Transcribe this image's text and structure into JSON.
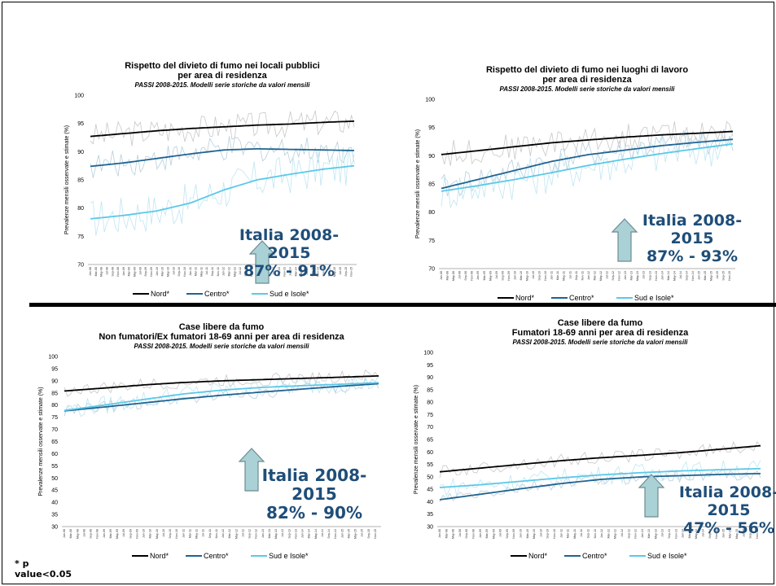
{
  "footnote": {
    "line1": "* p",
    "line2": "value<0.05"
  },
  "chart_data": [
    {
      "type": "line",
      "title": "Rispetto del divieto di fumo nei locali pubblici",
      "title2": "per area di residenza",
      "subtitle": "PASSI 2008-2015. Modelli serie storiche da valori mensili",
      "ylabel": "Prevalenze mensili osservate e stimate (%)",
      "ylim": [
        70,
        100
      ],
      "yticks": [
        70,
        75,
        80,
        85,
        90,
        95,
        100
      ],
      "x": [
        "2008-01",
        "2009-01",
        "2010-01",
        "2011-01",
        "2012-01",
        "2013-01",
        "2014-01",
        "2015-01",
        "2015-12"
      ],
      "series": [
        {
          "name": "Nord*",
          "color": "#000000",
          "values": [
            92.7,
            93.2,
            93.7,
            94.1,
            94.4,
            94.7,
            94.9,
            95.2,
            95.4
          ]
        },
        {
          "name": "Centro*",
          "color": "#1f6391",
          "values": [
            87.4,
            88.0,
            88.8,
            89.6,
            90.3,
            90.5,
            90.4,
            90.3,
            90.2
          ]
        },
        {
          "name": "Sud e Isole*",
          "color": "#5bc8e8",
          "values": [
            78.1,
            78.7,
            79.5,
            80.9,
            83.2,
            85.0,
            86.0,
            86.9,
            87.5
          ]
        }
      ],
      "annotation": {
        "line1": "Italia  2008-",
        "line2": "2015",
        "line3": "87% - 91%"
      }
    },
    {
      "type": "line",
      "title": "Rispetto del divieto di fumo nei luoghi di lavoro",
      "title2": "per area di residenza",
      "subtitle": "PASSI 2008-2015. Modelli serie storiche da valori mensili",
      "ylabel": "Prevalenze mensili osservate e stimate (%)",
      "ylim": [
        70,
        100
      ],
      "yticks": [
        70,
        75,
        80,
        85,
        90,
        95,
        100
      ],
      "x": [
        "2008-01",
        "2009-01",
        "2010-01",
        "2011-01",
        "2012-01",
        "2013-01",
        "2014-01",
        "2015-01",
        "2015-12"
      ],
      "series": [
        {
          "name": "Nord*",
          "color": "#000000",
          "values": [
            90.2,
            90.9,
            91.6,
            92.3,
            92.8,
            93.3,
            93.7,
            94.0,
            94.3
          ]
        },
        {
          "name": "Centro*",
          "color": "#1f6391",
          "values": [
            84.2,
            85.8,
            87.4,
            89.0,
            90.2,
            91.0,
            91.8,
            92.4,
            92.9
          ]
        },
        {
          "name": "Sud e Isole*",
          "color": "#5bc8e8",
          "values": [
            83.7,
            84.7,
            85.8,
            87.0,
            88.3,
            89.4,
            90.4,
            91.3,
            92.1
          ]
        }
      ],
      "annotation": {
        "line1": "Italia  2008-",
        "line2": "2015",
        "line3": "87% - 93%"
      }
    },
    {
      "type": "line",
      "title": "Case libere da fumo",
      "title2": "Non fumatori/Ex fumatori  18-69 anni per area di residenza",
      "subtitle": "PASSI 2008-2015. Modelli serie storiche da valori mensili",
      "ylabel": "Prevalenze mensili osservate e stimate (%)",
      "ylim": [
        30,
        100
      ],
      "yticks": [
        30,
        35,
        40,
        45,
        50,
        55,
        60,
        65,
        70,
        75,
        80,
        85,
        90,
        95,
        100
      ],
      "x": [
        "2008-01",
        "2009-01",
        "2010-01",
        "2011-01",
        "2012-01",
        "2013-01",
        "2014-01",
        "2015-01",
        "2015-12"
      ],
      "series": [
        {
          "name": "Nord*",
          "color": "#000000",
          "values": [
            85.8,
            87.0,
            88.3,
            89.3,
            90.0,
            90.5,
            91.0,
            91.5,
            92.0
          ]
        },
        {
          "name": "Centro*",
          "color": "#1f6391",
          "values": [
            77.6,
            79.2,
            80.9,
            82.6,
            84.1,
            85.4,
            86.6,
            87.8,
            88.8
          ]
        },
        {
          "name": "Sud e Isole*",
          "color": "#5bc8e8",
          "values": [
            77.8,
            80.0,
            82.3,
            84.6,
            86.2,
            87.3,
            88.0,
            88.6,
            89.2
          ]
        }
      ],
      "annotation": {
        "line1": "Italia  2008-",
        "line2": "2015",
        "line3": "82% - 90%"
      }
    },
    {
      "type": "line",
      "title": "Case libere da fumo",
      "title2": "Fumatori  18-69 anni per area di residenza",
      "subtitle": "PASSI 2008-2015. Modelli serie storiche da valori mensili",
      "ylabel": "Prevalenze mensili osservate e stimate (%)",
      "ylim": [
        30,
        100
      ],
      "yticks": [
        30,
        35,
        40,
        45,
        50,
        55,
        60,
        65,
        70,
        75,
        80,
        85,
        90,
        95,
        100
      ],
      "x": [
        "2008-01",
        "2009-01",
        "2010-01",
        "2011-01",
        "2012-01",
        "2013-01",
        "2014-01",
        "2015-01",
        "2015-12"
      ],
      "series": [
        {
          "name": "Nord*",
          "color": "#000000",
          "values": [
            52.0,
            53.5,
            55.0,
            56.5,
            57.7,
            58.7,
            59.8,
            61.2,
            62.5
          ]
        },
        {
          "name": "Centro*",
          "color": "#1f6391",
          "values": [
            40.8,
            43.0,
            45.2,
            47.3,
            49.0,
            50.0,
            50.5,
            51.0,
            51.3
          ]
        },
        {
          "name": "Sud e Isole*",
          "color": "#5bc8e8",
          "values": [
            45.7,
            46.8,
            48.2,
            49.6,
            50.8,
            51.7,
            52.4,
            52.9,
            53.3
          ]
        }
      ],
      "annotation": {
        "line1": "Italia  2008-",
        "line2": "2015",
        "line3": "47% - 56%"
      }
    }
  ]
}
